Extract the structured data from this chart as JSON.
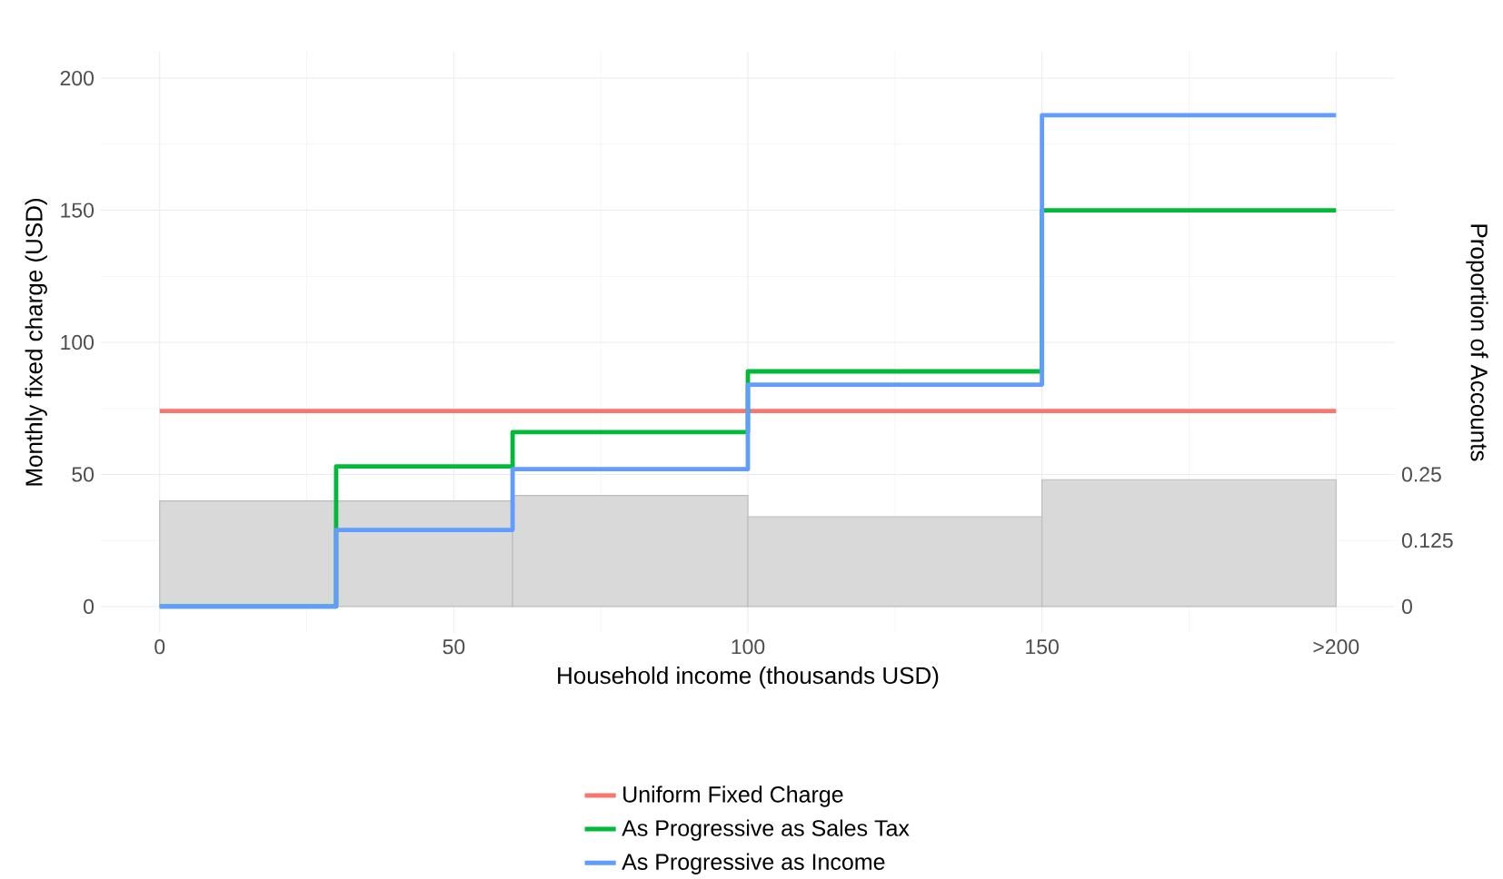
{
  "chart_data": {
    "type": "step",
    "xlabel": "Household income (thousands USD)",
    "ylabel": "Monthly fixed charge (USD)",
    "y2label": "Proportion of Accounts",
    "x": [
      0,
      30,
      60,
      100,
      150,
      200
    ],
    "series": [
      {
        "type": "histogram",
        "axis": "y2",
        "color": "#d9d9d9",
        "bins": [
          0,
          30,
          60,
          100,
          150,
          200
        ],
        "values": [
          0.2,
          0.2,
          0.21,
          0.17,
          0.24
        ]
      },
      {
        "name": "Uniform Fixed Charge",
        "color": "#f8766d",
        "values": [
          74,
          74,
          74,
          74,
          74,
          74
        ]
      },
      {
        "name": "As Progressive as Sales Tax",
        "color": "#00ba38",
        "values": [
          0,
          53,
          66,
          89,
          150,
          150
        ]
      },
      {
        "name": "As Progressive as Income",
        "color": "#619cff",
        "values": [
          0,
          29,
          52,
          84,
          186,
          186
        ]
      }
    ],
    "xlim": [
      -10,
      210
    ],
    "ylim": [
      -10,
      210
    ],
    "y2lim": [
      -0.05,
      1.05
    ],
    "xticks": [
      0,
      50,
      100,
      150,
      {
        "value": 200,
        "label": ">200"
      }
    ],
    "yticks": [
      0,
      50,
      100,
      150,
      200
    ],
    "y2ticks": [
      0,
      0.125,
      0.25
    ],
    "grid": true,
    "legend": "bottom"
  }
}
